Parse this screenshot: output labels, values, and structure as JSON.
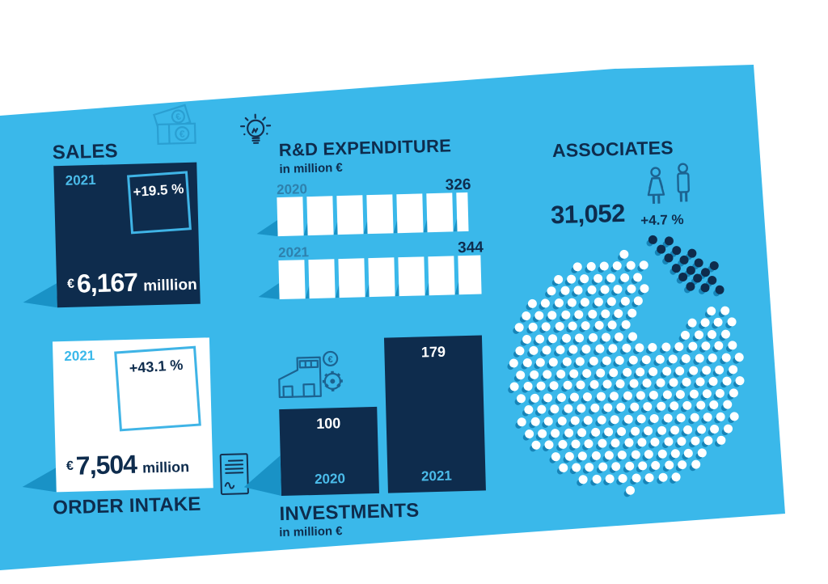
{
  "palette": {
    "blue": "#3ab8ea",
    "navy": "#0e2c4d",
    "shadow_blue": "#1992c6",
    "dot_shadow": "#1684b8",
    "muted_year_label": "#2e81ad",
    "light_year_label": "#4bbcea",
    "white": "#ffffff"
  },
  "sales": {
    "title": "SALES",
    "year": "2021",
    "change": "+19.5 %",
    "currency": "€",
    "value": "6,167",
    "unit": "milllion",
    "icon": "banknotes-icon"
  },
  "rnd": {
    "title": "R&D EXPENDITURE",
    "subtitle": "in million €",
    "icon": "lightbulb-icon",
    "rows": [
      {
        "year": "2020",
        "value": "326"
      },
      {
        "year": "2021",
        "value": "344"
      }
    ]
  },
  "associates": {
    "title": "ASSOCIATES",
    "value": "31,052",
    "change": "+4.7 %",
    "icons": [
      "woman-icon",
      "man-icon"
    ]
  },
  "order_intake": {
    "title": "ORDER INTAKE",
    "year": "2021",
    "change": "+43.1 %",
    "currency": "€",
    "value": "7,504",
    "unit": "million",
    "icon": "document-icon"
  },
  "investments": {
    "title": "INVESTMENTS",
    "subtitle": "in million €",
    "icon": "factory-euro-gear-icon",
    "bars": [
      {
        "year": "2020",
        "value": "100"
      },
      {
        "year": "2021",
        "value": "179"
      }
    ]
  },
  "chart_data": [
    {
      "id": "sales",
      "type": "kpi",
      "title": "SALES",
      "year": "2021",
      "value_eur_million": 6167,
      "change_pct": 19.5
    },
    {
      "id": "rnd_expenditure",
      "type": "bar",
      "title": "R&D EXPENDITURE",
      "unit": "million €",
      "orientation": "horizontal",
      "categories": [
        "2020",
        "2021"
      ],
      "values": [
        326,
        344
      ],
      "segment_value": 50
    },
    {
      "id": "associates",
      "type": "dot-matrix",
      "title": "ASSOCIATES",
      "value": 31052,
      "change_pct": 4.7
    },
    {
      "id": "order_intake",
      "type": "kpi",
      "title": "ORDER INTAKE",
      "year": "2021",
      "value_eur_million": 7504,
      "change_pct": 43.1
    },
    {
      "id": "investments",
      "type": "bar",
      "title": "INVESTMENTS",
      "unit": "million €",
      "orientation": "vertical",
      "categories": [
        "2020",
        "2021"
      ],
      "values": [
        100,
        179
      ]
    }
  ]
}
